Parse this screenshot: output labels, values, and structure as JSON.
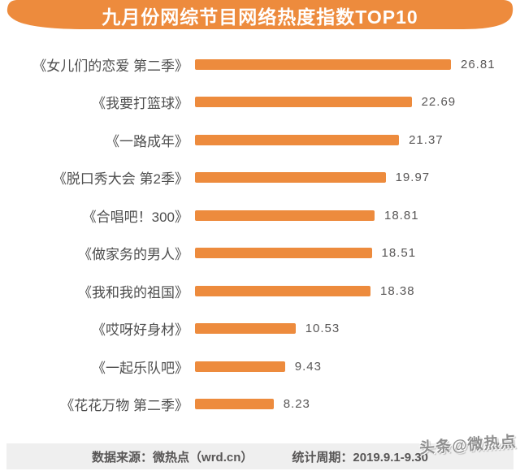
{
  "header": {
    "title": "九月份网综节目网络热度指数TOP10"
  },
  "chart_data": {
    "type": "bar",
    "orientation": "horizontal",
    "title": "九月份网综节目网络热度指数TOP10",
    "categories": [
      "《女儿们的恋爱 第二季》",
      "《我要打篮球》",
      "《一路成年》",
      "《脱口秀大会 第2季》",
      "《合唱吧！300》",
      "《做家务的男人》",
      "《我和我的祖国》",
      "《哎呀好身材》",
      "《一起乐队吧》",
      "《花花万物 第二季》"
    ],
    "values": [
      26.81,
      22.69,
      21.37,
      19.97,
      18.81,
      18.51,
      18.38,
      10.53,
      9.43,
      8.23
    ],
    "xlabel": "",
    "ylabel": "",
    "xlim": [
      0,
      30
    ],
    "grid": false,
    "legend": false,
    "bar_color": "#ED8B3D",
    "value_labels": true
  },
  "footer": {
    "source": "数据来源：微热点（wrd.cn）",
    "period": "统计周期：2019.9.1-9.30"
  },
  "watermark": {
    "text": "头条@微热点"
  },
  "colors": {
    "accent_orange": "#ED8B3D",
    "title_text": "#FFFFFF",
    "label_text": "#4E4E4E",
    "value_text": "#585656",
    "footer_bg": "#EFEFEF",
    "footer_text": "#585656",
    "watermark_text": "#8F8F8F",
    "background": "#FFFFFF"
  }
}
